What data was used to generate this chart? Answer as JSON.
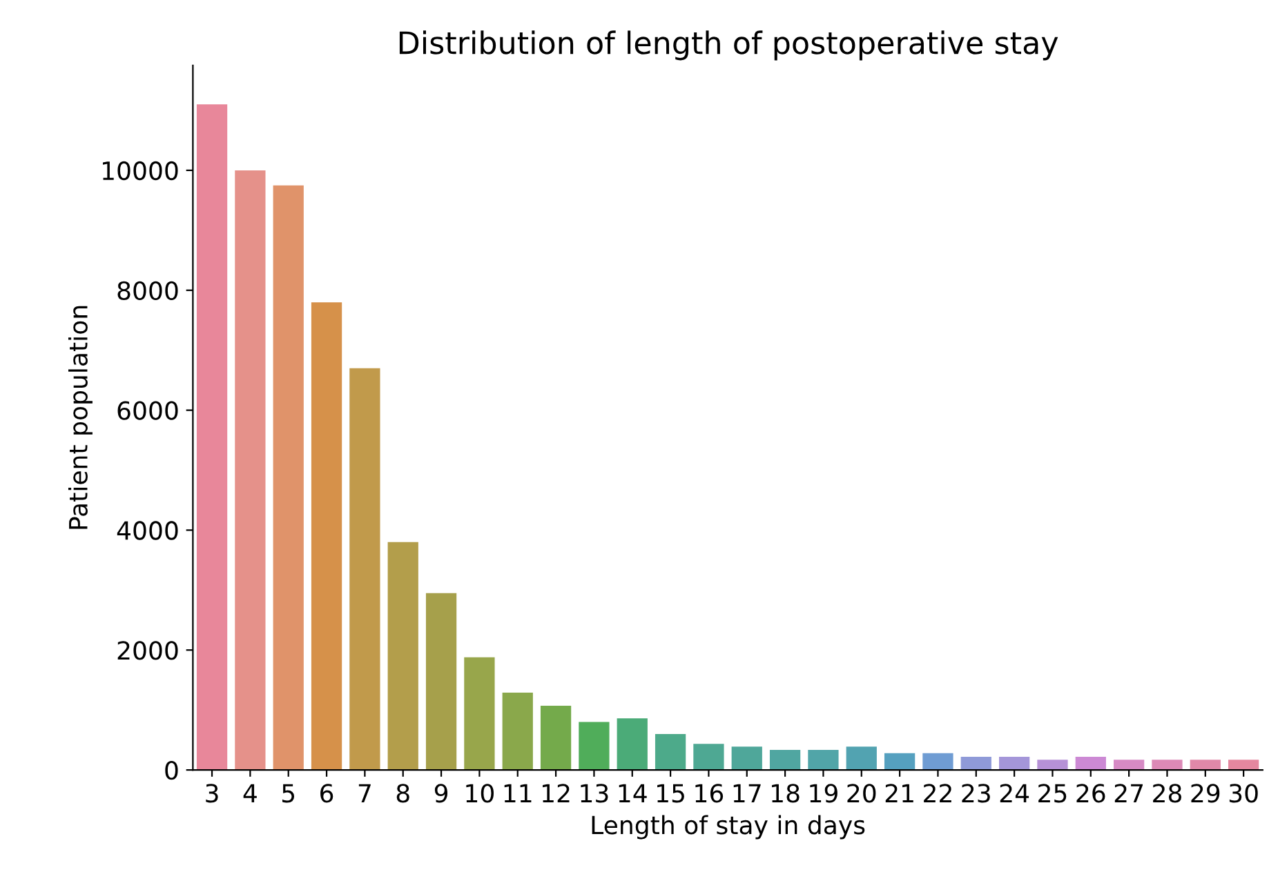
{
  "chart_data": {
    "type": "bar",
    "title": "Distribution of length of postoperative stay",
    "xlabel": "Length of stay in days",
    "ylabel": "Patient population",
    "categories": [
      "3",
      "4",
      "5",
      "6",
      "7",
      "8",
      "9",
      "10",
      "11",
      "12",
      "13",
      "14",
      "15",
      "16",
      "17",
      "18",
      "19",
      "20",
      "21",
      "22",
      "23",
      "24",
      "25",
      "26",
      "27",
      "28",
      "29",
      "30"
    ],
    "values": [
      11100,
      10000,
      9750,
      7800,
      6700,
      3800,
      2950,
      1880,
      1290,
      1070,
      800,
      860,
      600,
      435,
      390,
      335,
      335,
      390,
      280,
      280,
      220,
      220,
      170,
      220,
      170,
      170,
      170,
      170
    ],
    "colors": [
      "#e8879a",
      "#e5918a",
      "#e0936a",
      "#d6914a",
      "#c19a4b",
      "#b39e4b",
      "#a6a04b",
      "#98a64b",
      "#8aa84b",
      "#74aa4b",
      "#50ad5a",
      "#4bab78",
      "#4daa8a",
      "#4ea893",
      "#4fa79a",
      "#50a6a1",
      "#51a5a8",
      "#52a3b1",
      "#55a0bf",
      "#6f9cd3",
      "#8f9ad8",
      "#a496d9",
      "#b691d6",
      "#cc89d4",
      "#d68ac4",
      "#dc89b6",
      "#e088a8",
      "#e4879f"
    ],
    "ylim": [
      0,
      11750
    ],
    "yticks": [
      0,
      2000,
      4000,
      6000,
      8000,
      10000
    ],
    "grid": false,
    "legend": false
  }
}
